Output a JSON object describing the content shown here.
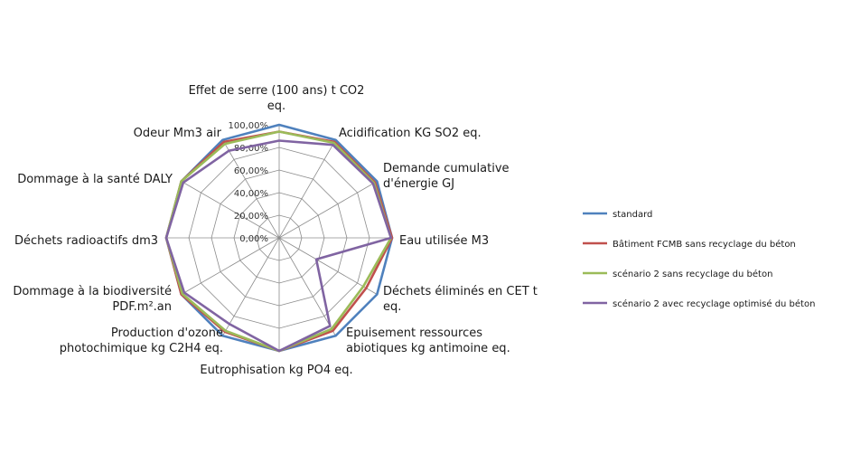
{
  "chart_data": {
    "type": "radar",
    "title": "",
    "axes": [
      [
        "Effet de serre (100 ans) t CO2",
        "eq."
      ],
      [
        "Acidification KG SO2 eq."
      ],
      [
        "Demande cumulative",
        "d'énergie GJ"
      ],
      [
        "Eau utilisée M3"
      ],
      [
        "Déchets éliminés en CET t",
        "eq."
      ],
      [
        "Epuisement ressources",
        "abiotiques kg antimoine eq."
      ],
      [
        "Eutrophisation kg PO4 eq."
      ],
      [
        "Production d'ozone",
        "photochimique  kg C2H4 eq."
      ],
      [
        "Dommage à la biodiversité",
        "PDF.m².an"
      ],
      [
        "Déchets radioactifs dm3"
      ],
      [
        "Dommage à la santé DALY"
      ],
      [
        "Odeur Mm3 air"
      ]
    ],
    "rlim": [
      0,
      100
    ],
    "tick_values": [
      0,
      20,
      40,
      60,
      80,
      100
    ],
    "tick_labels": [
      "0,00%",
      "20,00%",
      "40,00%",
      "60,00%",
      "80,00%",
      "100,00%"
    ],
    "grid": true,
    "legend_position": "right",
    "series": [
      {
        "name": "standard",
        "color": "#4f81bd",
        "values": [
          100,
          100,
          100,
          100,
          100,
          100,
          100,
          100,
          100,
          100,
          100,
          100
        ]
      },
      {
        "name": "Bâtiment FCMB sans recyclage du béton",
        "color": "#c0504d",
        "values": [
          94,
          98,
          98,
          100,
          89,
          95,
          100,
          96,
          100,
          100,
          100,
          98
        ]
      },
      {
        "name": "scénario 2 sans recyclage du béton",
        "color": "#9bbb59",
        "values": [
          94,
          97,
          97,
          99,
          86,
          93,
          100,
          95,
          99,
          100,
          100,
          96
        ]
      },
      {
        "name": "scénario 2 avec recyclage optimisé du béton",
        "color": "#8064a2",
        "values": [
          86,
          95,
          96,
          99,
          38,
          90,
          100,
          88,
          97,
          100,
          98,
          89
        ]
      }
    ]
  }
}
